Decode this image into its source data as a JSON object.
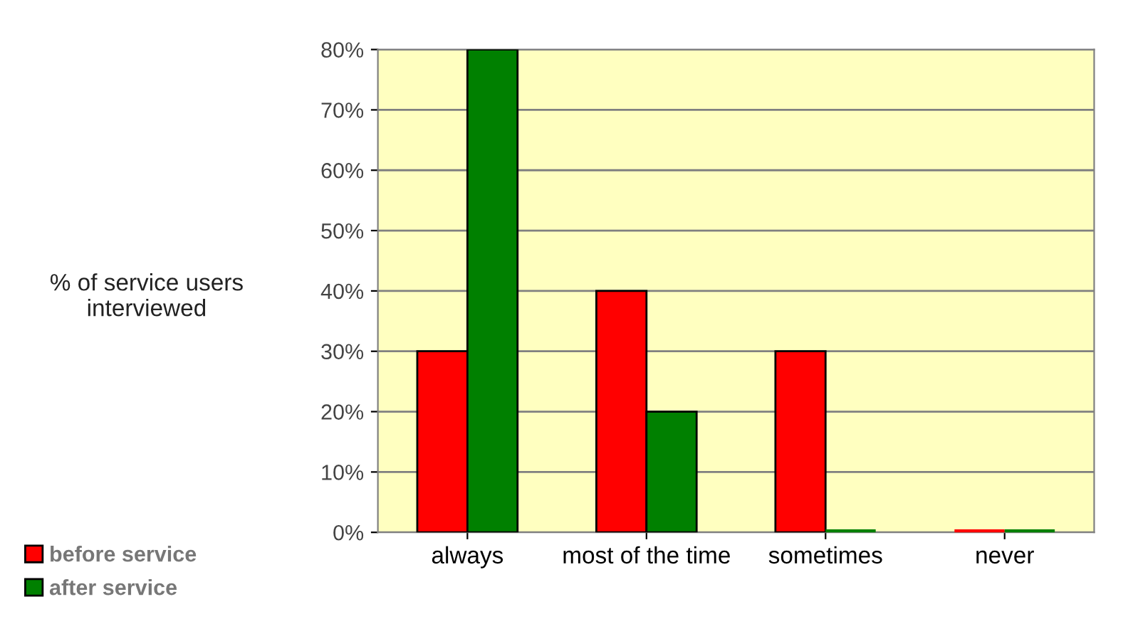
{
  "chart_data": {
    "type": "bar",
    "ylabel": "% of service users\ninterviewed",
    "categories": [
      "always",
      "most of the time",
      "sometimes",
      "never"
    ],
    "series": [
      {
        "name": "before service",
        "color": "#ff0000",
        "values": [
          30,
          40,
          30,
          0
        ]
      },
      {
        "name": "after service",
        "color": "#008000",
        "values": [
          80,
          20,
          0,
          0
        ]
      }
    ],
    "ylim": [
      0,
      80
    ],
    "yticks": [
      {
        "value": 0,
        "label": "0%"
      },
      {
        "value": 10,
        "label": "10%"
      },
      {
        "value": 20,
        "label": "20%"
      },
      {
        "value": 30,
        "label": "30%"
      },
      {
        "value": 40,
        "label": "40%"
      },
      {
        "value": 50,
        "label": "50%"
      },
      {
        "value": 60,
        "label": "60%"
      },
      {
        "value": 70,
        "label": "70%"
      },
      {
        "value": 80,
        "label": "80%"
      }
    ],
    "grid": "y",
    "legend": "bottom left"
  }
}
